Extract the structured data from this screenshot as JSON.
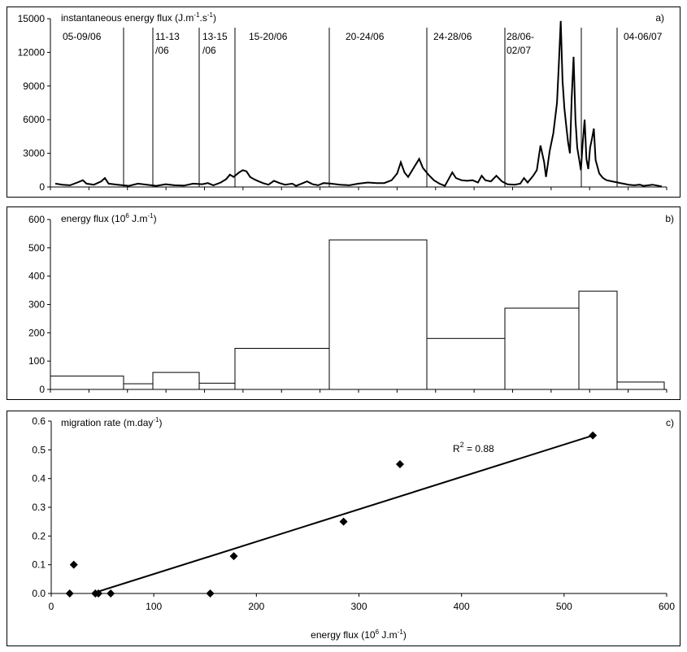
{
  "chart_data": [
    {
      "panel": "a",
      "type": "line",
      "ylabel_parts": [
        "instantaneous energy flux (J.m",
        "-1",
        ".s",
        "-1",
        ")"
      ],
      "panel_label": "a)",
      "yticks": [
        0,
        3000,
        6000,
        9000,
        12000,
        15000
      ],
      "ylim": [
        0,
        15000
      ],
      "x_count": 330,
      "keypoints": [
        [
          0,
          300
        ],
        [
          4,
          200
        ],
        [
          8,
          150
        ],
        [
          12,
          400
        ],
        [
          15,
          600
        ],
        [
          17,
          300
        ],
        [
          21,
          200
        ],
        [
          25,
          500
        ],
        [
          27,
          800
        ],
        [
          29,
          300
        ],
        [
          34,
          200
        ],
        [
          40,
          100
        ],
        [
          45,
          300
        ],
        [
          50,
          200
        ],
        [
          55,
          100
        ],
        [
          60,
          250
        ],
        [
          65,
          150
        ],
        [
          70,
          120
        ],
        [
          75,
          300
        ],
        [
          80,
          250
        ],
        [
          83,
          350
        ],
        [
          86,
          150
        ],
        [
          90,
          400
        ],
        [
          93,
          700
        ],
        [
          95,
          1100
        ],
        [
          97,
          900
        ],
        [
          100,
          1300
        ],
        [
          102,
          1500
        ],
        [
          104,
          1400
        ],
        [
          106,
          900
        ],
        [
          108,
          700
        ],
        [
          110,
          550
        ],
        [
          113,
          350
        ],
        [
          116,
          200
        ],
        [
          119,
          550
        ],
        [
          122,
          350
        ],
        [
          125,
          200
        ],
        [
          129,
          300
        ],
        [
          131,
          100
        ],
        [
          134,
          300
        ],
        [
          137,
          500
        ],
        [
          140,
          250
        ],
        [
          143,
          150
        ],
        [
          146,
          350
        ],
        [
          150,
          300
        ],
        [
          155,
          200
        ],
        [
          160,
          150
        ],
        [
          165,
          300
        ],
        [
          170,
          400
        ],
        [
          175,
          350
        ],
        [
          179,
          350
        ],
        [
          183,
          600
        ],
        [
          186,
          1200
        ],
        [
          188,
          2200
        ],
        [
          190,
          1300
        ],
        [
          192,
          900
        ],
        [
          195,
          1700
        ],
        [
          198,
          2500
        ],
        [
          200,
          1700
        ],
        [
          203,
          1100
        ],
        [
          206,
          600
        ],
        [
          209,
          300
        ],
        [
          212,
          100
        ],
        [
          214,
          700
        ],
        [
          216,
          1300
        ],
        [
          218,
          800
        ],
        [
          221,
          600
        ],
        [
          224,
          550
        ],
        [
          227,
          600
        ],
        [
          230,
          400
        ],
        [
          232,
          1000
        ],
        [
          234,
          600
        ],
        [
          237,
          500
        ],
        [
          240,
          1000
        ],
        [
          243,
          500
        ],
        [
          246,
          250
        ],
        [
          250,
          200
        ],
        [
          253,
          300
        ],
        [
          255,
          800
        ],
        [
          257,
          400
        ],
        [
          260,
          1000
        ],
        [
          262,
          1500
        ],
        [
          264,
          3700
        ],
        [
          266,
          2200
        ],
        [
          267,
          900
        ],
        [
          269,
          3200
        ],
        [
          271,
          4800
        ],
        [
          273,
          7500
        ],
        [
          274,
          11000
        ],
        [
          275,
          14800
        ],
        [
          276,
          9500
        ],
        [
          277,
          7000
        ],
        [
          278,
          5500
        ],
        [
          279,
          4000
        ],
        [
          280,
          3000
        ],
        [
          281,
          8000
        ],
        [
          282,
          11600
        ],
        [
          283,
          6000
        ],
        [
          284,
          3500
        ],
        [
          285,
          2500
        ],
        [
          286,
          1500
        ],
        [
          287,
          4000
        ],
        [
          288,
          6000
        ],
        [
          289,
          2500
        ],
        [
          290,
          1600
        ],
        [
          291,
          3500
        ],
        [
          292,
          4300
        ],
        [
          293,
          5200
        ],
        [
          294,
          2400
        ],
        [
          296,
          1200
        ],
        [
          298,
          800
        ],
        [
          300,
          600
        ],
        [
          303,
          500
        ],
        [
          306,
          400
        ],
        [
          309,
          300
        ],
        [
          312,
          200
        ],
        [
          315,
          150
        ],
        [
          318,
          200
        ],
        [
          320,
          100
        ],
        [
          325,
          200
        ],
        [
          330,
          50
        ]
      ]
    },
    {
      "panel": "b",
      "type": "bar",
      "ylabel_parts": [
        "energy flux (10",
        "6",
        " J.m",
        "-1",
        ")"
      ],
      "panel_label": "b)",
      "yticks": [
        0,
        100,
        200,
        300,
        400,
        500,
        600
      ],
      "ylim": [
        0,
        600
      ],
      "bars": [
        {
          "value": 47
        },
        {
          "value": 20
        },
        {
          "value": 60
        },
        {
          "value": 22
        },
        {
          "value": 145
        },
        {
          "value": 528
        },
        {
          "value": 180
        },
        {
          "value": 287
        },
        {
          "value": 347
        },
        {
          "value": 26
        }
      ]
    },
    {
      "panel": "c",
      "type": "scatter",
      "ylabel_parts": [
        "migration rate (m.day",
        "-1",
        ")"
      ],
      "xlabel_parts": [
        "energy flux (10",
        "6",
        " J.m",
        "-1",
        ")"
      ],
      "panel_label": "c)",
      "r2_label": [
        "R",
        "2",
        " = 0.88"
      ],
      "xticks": [
        0,
        100,
        200,
        300,
        400,
        500,
        600
      ],
      "yticks": [
        "0.0",
        "0.1",
        "0.2",
        "0.3",
        "0.4",
        "0.5",
        "0.6"
      ],
      "xlim": [
        0,
        600
      ],
      "ylim": [
        0,
        0.6
      ],
      "points": [
        [
          18,
          0.0
        ],
        [
          22,
          0.1
        ],
        [
          43,
          0.0
        ],
        [
          46,
          0.0
        ],
        [
          58,
          0.0
        ],
        [
          155,
          0.0
        ],
        [
          178,
          0.13
        ],
        [
          285,
          0.25
        ],
        [
          340,
          0.45
        ],
        [
          528,
          0.55
        ]
      ],
      "trendline": [
        [
          40,
          0.0
        ],
        [
          528,
          0.55
        ]
      ]
    }
  ],
  "periods": [
    "05-09/06",
    "11-13 /06",
    "13-15 /06",
    "15-20/06",
    "20-24/06",
    "24-28/06",
    "28/06- 02/07",
    "04-06/07"
  ],
  "period_lines": [
    {
      "label": "05-09/06",
      "lines": [
        "05-09/06"
      ]
    },
    {
      "label": "11-13 /06",
      "lines": [
        "11-13",
        "/06"
      ]
    },
    {
      "label": "13-15 /06",
      "lines": [
        "13-15",
        "/06"
      ]
    },
    {
      "label": "15-20/06",
      "lines": [
        "15-20/06"
      ]
    },
    {
      "label": "20-24/06",
      "lines": [
        "20-24/06"
      ]
    },
    {
      "label": "24-28/06",
      "lines": [
        "24-28/06"
      ]
    },
    {
      "label": "28/06- 02/07",
      "lines": [
        "28/06-",
        "02/07"
      ]
    },
    {
      "label": "04-06/07",
      "lines": [
        "04-06/07"
      ]
    }
  ]
}
